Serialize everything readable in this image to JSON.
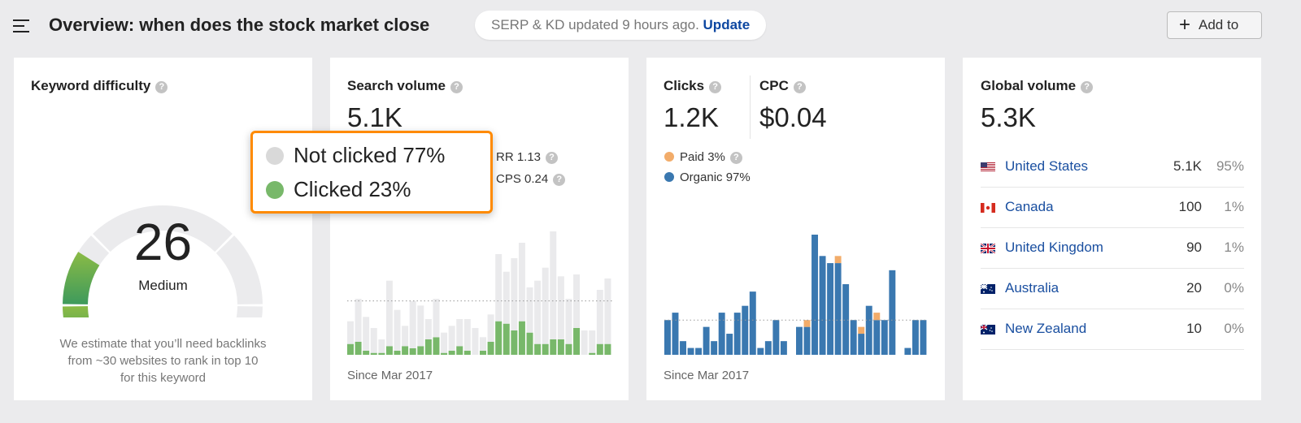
{
  "header": {
    "title": "Overview: when does the stock market close",
    "status_text": "SERP & KD updated 9 hours ago.",
    "update_link": "Update",
    "add_button": "Add to",
    "icons": {
      "menu": "hamburger-icon",
      "add": "plus-icon"
    }
  },
  "keyword_difficulty": {
    "title": "Keyword difficulty",
    "value": "26",
    "score": 26,
    "max_score": 100,
    "label": "Medium",
    "description": [
      "We estimate that you’ll need backlinks",
      "from ~30 websites to rank in top 10",
      "for this keyword"
    ],
    "colors": {
      "fill_start": "#8bbb45",
      "fill_end": "#3e9a5c",
      "track": "#ebebed"
    }
  },
  "search_volume": {
    "title": "Search volume",
    "value": "5.1K",
    "rr": "RR 1.13",
    "cps": "CPS 0.24",
    "since": "Since Mar 2017"
  },
  "tooltip": {
    "not_clicked": "Not clicked 77%",
    "clicked": "Clicked 23%",
    "colors": {
      "not_clicked": "#d9d9d9",
      "clicked": "#78b86a",
      "border": "#ff8a00"
    }
  },
  "clicks": {
    "title": "Clicks",
    "value": "1.2K",
    "legend_paid": "Paid 3%",
    "legend_organic": "Organic 97%",
    "since": "Since Mar 2017"
  },
  "cpc": {
    "title": "CPC",
    "value": "$0.04"
  },
  "global_volume": {
    "title": "Global volume",
    "value": "5.3K",
    "countries": [
      {
        "name": "United States",
        "volume": "5.1K",
        "pct": "95%",
        "flag": "us"
      },
      {
        "name": "Canada",
        "volume": "100",
        "pct": "1%",
        "flag": "ca"
      },
      {
        "name": "United Kingdom",
        "volume": "90",
        "pct": "1%",
        "flag": "gb"
      },
      {
        "name": "Australia",
        "volume": "20",
        "pct": "0%",
        "flag": "au"
      },
      {
        "name": "New Zealand",
        "volume": "10",
        "pct": "0%",
        "flag": "nz"
      }
    ]
  },
  "chart_data": [
    {
      "type": "bar",
      "stacked": true,
      "average": 199,
      "colors": {
        "total": "#eaeaec",
        "clicked": "#78b86a"
      },
      "series": [
        {
          "name": "Clicked",
          "values": [
            40,
            48,
            15,
            7,
            7,
            32,
            15,
            32,
            24,
            32,
            57,
            65,
            7,
            15,
            32,
            15,
            0,
            15,
            48,
            124,
            115,
            90,
            124,
            82,
            40,
            40,
            57,
            57,
            40,
            99,
            0,
            7,
            40,
            40
          ]
        },
        {
          "name": "Not clicked",
          "values": [
            84,
            159,
            125,
            92,
            50,
            242,
            151,
            75,
            175,
            150,
            75,
            142,
            75,
            92,
            100,
            117,
            99,
            50,
            101,
            248,
            192,
            267,
            290,
            167,
            234,
            282,
            399,
            233,
            167,
            198,
            90,
            83,
            200,
            242
          ]
        }
      ]
    },
    {
      "type": "bar",
      "stacked": true,
      "average": 122,
      "colors": {
        "organic": "#3a78b0",
        "paid": "#f2ac6a"
      },
      "series": [
        {
          "name": "Organic",
          "values": [
            122,
            148,
            48,
            24,
            24,
            98,
            48,
            148,
            74,
            148,
            172,
            222,
            24,
            48,
            122,
            48,
            0,
            98,
            98,
            422,
            347,
            322,
            322,
            248,
            122,
            74,
            172,
            122,
            122,
            297,
            0,
            24,
            122,
            122
          ]
        },
        {
          "name": "Paid",
          "values": [
            0,
            0,
            0,
            0,
            0,
            0,
            0,
            0,
            0,
            0,
            0,
            0,
            0,
            0,
            0,
            0,
            0,
            0,
            24,
            0,
            0,
            0,
            25,
            0,
            0,
            24,
            0,
            26,
            0,
            0,
            0,
            0,
            0,
            0
          ]
        }
      ]
    }
  ]
}
